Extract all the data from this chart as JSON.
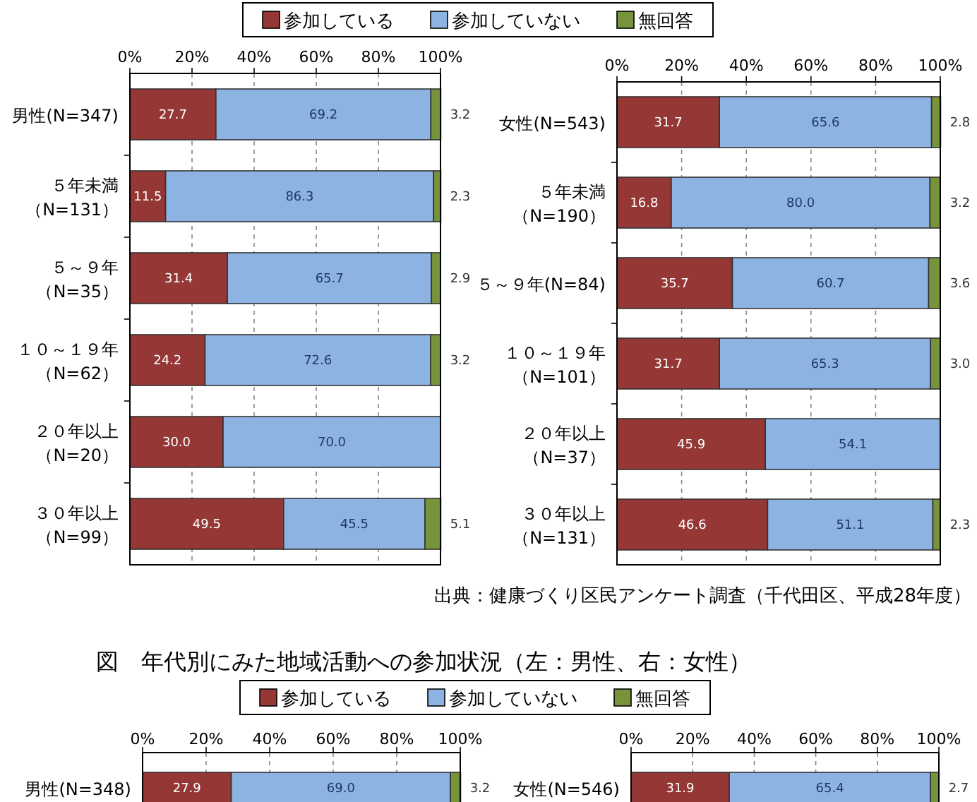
{
  "chart_data": [
    {
      "type": "bar",
      "orientation": "horizontal",
      "stacked": true,
      "legend": "top",
      "grid": "x",
      "categories": [
        "男性(N=347)",
        "５年未満（N=131）",
        "５～９年（N=35）",
        "１０～１９年（N=62）",
        "２０年以上（N=20）",
        "３０年以上（N=99）"
      ],
      "xlim": [
        0,
        100
      ],
      "xticks": [
        {
          "value": 0,
          "label": "0%"
        },
        {
          "value": 20,
          "label": "20%"
        },
        {
          "value": 40,
          "label": "40%"
        },
        {
          "value": 60,
          "label": "60%"
        },
        {
          "value": 80,
          "label": "80%"
        },
        {
          "value": 100,
          "label": "100%"
        }
      ],
      "series": [
        {
          "name": "参加している",
          "color": "#953735",
          "values": [
            27.7,
            11.5,
            31.4,
            24.2,
            30.0,
            49.5
          ],
          "value_labels": [
            "27.7",
            "11.5",
            "31.4",
            "24.2",
            "30.0",
            "49.5"
          ]
        },
        {
          "name": "参加していない",
          "color": "#8db3e2",
          "values": [
            69.2,
            86.3,
            65.7,
            72.6,
            70.0,
            45.5
          ],
          "value_labels": [
            "69.2",
            "86.3",
            "65.7",
            "72.6",
            "70.0",
            "45.5"
          ]
        },
        {
          "name": "無回答",
          "color": "#77933c",
          "values": [
            3.2,
            2.3,
            2.9,
            3.2,
            null,
            5.1
          ],
          "value_labels": [
            "3.2",
            "2.3",
            "2.9",
            "3.2",
            null,
            "5.1"
          ]
        }
      ]
    },
    {
      "type": "bar",
      "orientation": "horizontal",
      "stacked": true,
      "grid": "x",
      "categories": [
        "女性(N=543)",
        "５年未満（N=190）",
        "５～９年(N=84)",
        "１０～１９年（N=101）",
        "２０年以上（N=37）",
        "３０年以上（N=131）"
      ],
      "xlim": [
        0,
        100
      ],
      "xticks": [
        {
          "value": 0,
          "label": "0%"
        },
        {
          "value": 20,
          "label": "20%"
        },
        {
          "value": 40,
          "label": "40%"
        },
        {
          "value": 60,
          "label": "60%"
        },
        {
          "value": 80,
          "label": "80%"
        },
        {
          "value": 100,
          "label": "100%"
        }
      ],
      "annotations": [
        "出典：健康づくり区民アンケート調査（千代田区、平成28年度）"
      ],
      "series": [
        {
          "color": "#953735",
          "values": [
            31.7,
            16.8,
            35.7,
            31.7,
            45.9,
            46.6
          ],
          "value_labels": [
            "31.7",
            "16.8",
            "35.7",
            "31.7",
            "45.9",
            "46.6"
          ]
        },
        {
          "color": "#8db3e2",
          "values": [
            65.6,
            80.0,
            60.7,
            65.3,
            54.1,
            51.1
          ],
          "value_labels": [
            "65.6",
            "80.0",
            "60.7",
            "65.3",
            "54.1",
            "51.1"
          ]
        },
        {
          "color": "#77933c",
          "values": [
            2.8,
            3.2,
            3.6,
            3.0,
            null,
            2.3
          ],
          "value_labels": [
            "2.8",
            "3.2",
            "3.6",
            "3.0",
            null,
            "2.3"
          ]
        }
      ]
    },
    {
      "type": "bar",
      "orientation": "horizontal",
      "stacked": true,
      "legend": "top",
      "grid": "x",
      "title": "図　年代別にみた地域活動への参加状況（左：男性、右：女性）",
      "categories": [
        "男性(N=348)"
      ],
      "xlim": [
        0,
        100
      ],
      "xticks": [
        {
          "value": 0,
          "label": "0%"
        },
        {
          "value": 20,
          "label": "20%"
        },
        {
          "value": 40,
          "label": "40%"
        },
        {
          "value": 60,
          "label": "60%"
        },
        {
          "value": 80,
          "label": "80%"
        },
        {
          "value": 100,
          "label": "100%"
        }
      ],
      "series": [
        {
          "name": "参加している",
          "color": "#953735",
          "values": [
            27.9
          ],
          "value_labels": [
            "27.9"
          ]
        },
        {
          "name": "参加していない",
          "color": "#8db3e2",
          "values": [
            69.0
          ],
          "value_labels": [
            "69.0"
          ]
        },
        {
          "name": "無回答",
          "color": "#77933c",
          "values": [
            3.2
          ],
          "value_labels": [
            "3.2"
          ]
        }
      ]
    },
    {
      "type": "bar",
      "orientation": "horizontal",
      "stacked": true,
      "grid": "x",
      "categories": [
        "女性(N=546)"
      ],
      "xlim": [
        0,
        100
      ],
      "xticks": [
        {
          "value": 0,
          "label": "0%"
        },
        {
          "value": 20,
          "label": "20%"
        },
        {
          "value": 40,
          "label": "40%"
        },
        {
          "value": 60,
          "label": "60%"
        },
        {
          "value": 80,
          "label": "80%"
        },
        {
          "value": 100,
          "label": "100%"
        }
      ],
      "series": [
        {
          "color": "#953735",
          "values": [
            31.9
          ],
          "value_labels": [
            "31.9"
          ]
        },
        {
          "color": "#8db3e2",
          "values": [
            65.4
          ],
          "value_labels": [
            "65.4"
          ]
        },
        {
          "color": "#77933c",
          "values": [
            2.7
          ],
          "value_labels": [
            "2.7"
          ]
        }
      ]
    }
  ]
}
